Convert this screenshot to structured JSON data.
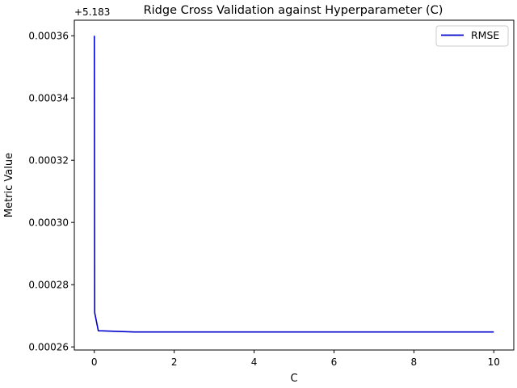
{
  "chart_data": {
    "type": "line",
    "title": "Ridge Cross Validation against Hyperparameter (C)",
    "xlabel": "C",
    "ylabel": "Metric Value",
    "offset_label": "+5.183",
    "xlim": [
      -0.5,
      10.5
    ],
    "ylim": [
      0.000259,
      0.000365
    ],
    "x_ticks": [
      0,
      2,
      4,
      6,
      8,
      10
    ],
    "x_tick_labels": [
      "0",
      "2",
      "4",
      "6",
      "8",
      "10"
    ],
    "y_ticks": [
      0.00026,
      0.00028,
      0.0003,
      0.00032,
      0.00034,
      0.00036
    ],
    "y_tick_labels": [
      "0.00026",
      "0.00028",
      "0.00030",
      "0.00032",
      "0.00034",
      "0.00036"
    ],
    "grid": false,
    "legend_position": "top-right",
    "series": [
      {
        "name": "RMSE",
        "color": "#0000cc",
        "x": [
          0.001,
          0.01,
          0.1,
          1,
          10
        ],
        "y": [
          0.00036,
          0.000271,
          0.0002652,
          0.0002648,
          0.0002648
        ]
      }
    ]
  }
}
